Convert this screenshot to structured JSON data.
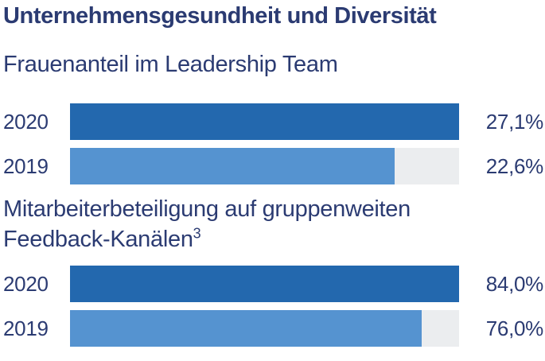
{
  "title": "Unternehmensgesundheit und Diversität",
  "colors": {
    "text_navy": "#2B3B72",
    "bar_2020": "#2368AE",
    "bar_2019": "#5593D0",
    "bar_track": "#EBEDEF",
    "background": "#FFFFFF"
  },
  "chart_data": {
    "type": "bar",
    "orientation": "horizontal",
    "title": "Unternehmensgesundheit und Diversität",
    "bar_scale": "each bar width is relative to the max value of its pair; 2020 bar fills full track",
    "legend": "none",
    "grid": false,
    "charts": [
      {
        "subtitle": "Frauenanteil im Leadership Team",
        "categories": [
          "2020",
          "2019"
        ],
        "values": [
          27.1,
          22.6
        ],
        "value_labels": [
          "27,1%",
          "22,6%"
        ],
        "unit": "%"
      },
      {
        "subtitle": "Mitarbeiterbeteiligung auf gruppenweiten Feedback-Kanälen",
        "subtitle_lines": [
          "Mitarbeiterbeteiligung auf gruppenweiten",
          "Feedback-Kanälen"
        ],
        "footnote_marker": "3",
        "categories": [
          "2020",
          "2019"
        ],
        "values": [
          84.0,
          76.0
        ],
        "value_labels": [
          "84,0%",
          "76,0%"
        ],
        "unit": "%"
      }
    ]
  }
}
